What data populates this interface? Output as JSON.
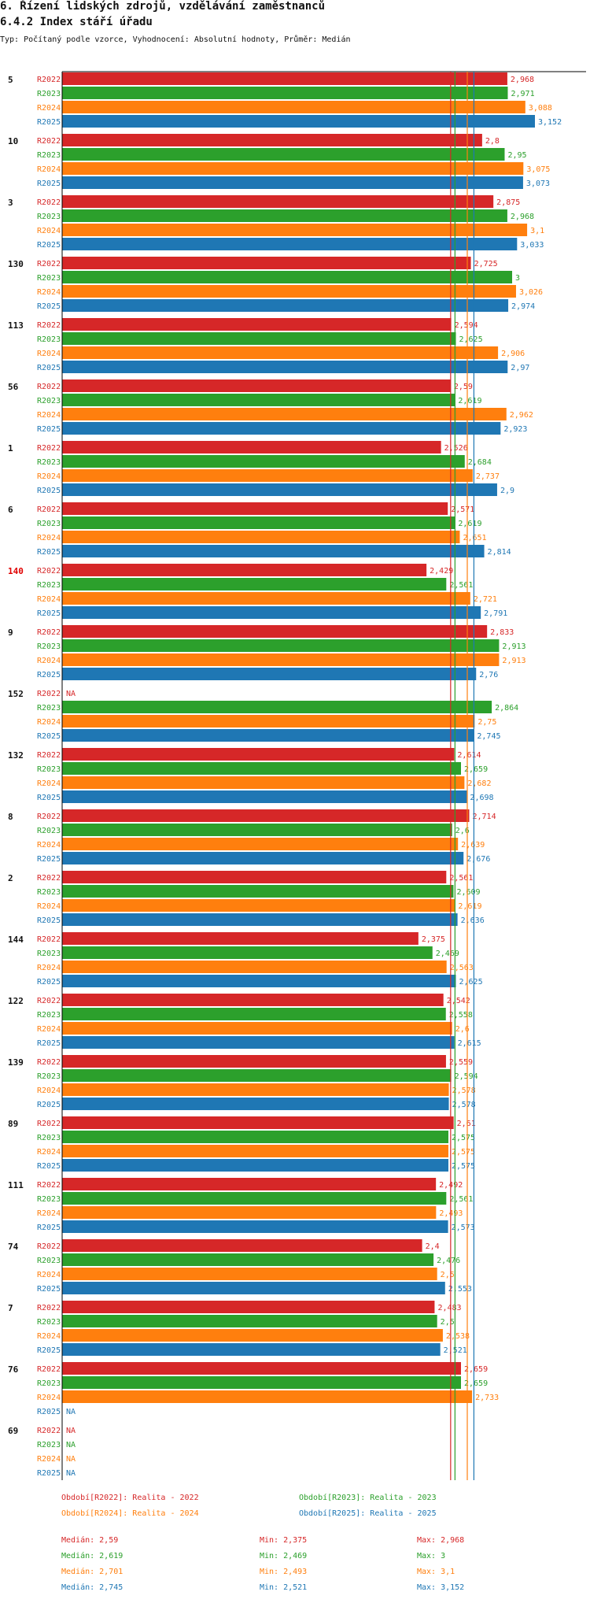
{
  "title": "6. Řízení lidských zdrojů, vzdělávání zaměstnanců",
  "subtitle": "6.4.2 Index stáří úřadu",
  "description": "Typ: Počítaný podle vzorce, Vyhodnocení: Absolutní hodnoty, Průměr: Medián",
  "colors": {
    "R2022": "#d62728",
    "R2023": "#2ca02c",
    "R2024": "#ff7f0e",
    "R2025": "#1f77b4"
  },
  "chart_data": {
    "type": "bar",
    "orientation": "horizontal",
    "series_names": [
      "R2022",
      "R2023",
      "R2024",
      "R2025"
    ],
    "xlim": [
      0,
      3.152
    ],
    "na_label": "NA",
    "highlight_category": "140",
    "groups": [
      {
        "label": "5",
        "values": [
          "2,968",
          "2,971",
          "3,088",
          "3,152"
        ]
      },
      {
        "label": "10",
        "values": [
          "2,8",
          "2,95",
          "3,075",
          "3,073"
        ]
      },
      {
        "label": "3",
        "values": [
          "2,875",
          "2,968",
          "3,1",
          "3,033"
        ]
      },
      {
        "label": "130",
        "values": [
          "2,725",
          "3",
          "3,026",
          "2,974"
        ]
      },
      {
        "label": "113",
        "values": [
          "2,594",
          "2,625",
          "2,906",
          "2,97"
        ]
      },
      {
        "label": "56",
        "values": [
          "2,59",
          "2,619",
          "2,962",
          "2,923"
        ]
      },
      {
        "label": "1",
        "values": [
          "2,526",
          "2,684",
          "2,737",
          "2,9"
        ]
      },
      {
        "label": "6",
        "values": [
          "2,571",
          "2,619",
          "2,651",
          "2,814"
        ]
      },
      {
        "label": "140",
        "values": [
          "2,429",
          "2,561",
          "2,721",
          "2,791"
        ]
      },
      {
        "label": "9",
        "values": [
          "2,833",
          "2,913",
          "2,913",
          "2,76"
        ]
      },
      {
        "label": "152",
        "values": [
          null,
          "2,864",
          "2,75",
          "2,745"
        ]
      },
      {
        "label": "132",
        "values": [
          "2,614",
          "2,659",
          "2,682",
          "2,698"
        ]
      },
      {
        "label": "8",
        "values": [
          "2,714",
          "2,6",
          "2,639",
          "2,676"
        ]
      },
      {
        "label": "2",
        "values": [
          "2,561",
          "2,609",
          "2,619",
          "2,636"
        ]
      },
      {
        "label": "144",
        "values": [
          "2,375",
          "2,469",
          "2,563",
          "2,625"
        ]
      },
      {
        "label": "122",
        "values": [
          "2,542",
          "2,558",
          "2,6",
          "2,615"
        ]
      },
      {
        "label": "139",
        "values": [
          "2,559",
          "2,594",
          "2,578",
          "2,578"
        ]
      },
      {
        "label": "89",
        "values": [
          "2,61",
          "2,575",
          "2,575",
          "2,575"
        ]
      },
      {
        "label": "111",
        "values": [
          "2,492",
          "2,561",
          "2,493",
          "2,573"
        ]
      },
      {
        "label": "74",
        "values": [
          "2,4",
          "2,476",
          "2,5",
          "2,553"
        ]
      },
      {
        "label": "7",
        "values": [
          "2,483",
          "2,5",
          "2,538",
          "2,521"
        ]
      },
      {
        "label": "76",
        "values": [
          "2,659",
          "2,659",
          "2,733",
          null
        ]
      },
      {
        "label": "69",
        "values": [
          null,
          null,
          null,
          null
        ]
      }
    ],
    "medians": [
      {
        "series": "R2022",
        "value": 2.59
      },
      {
        "series": "R2023",
        "value": 2.619
      },
      {
        "series": "R2024",
        "value": 2.701
      },
      {
        "series": "R2025",
        "value": 2.745
      }
    ]
  },
  "legend": {
    "periods": [
      "Období[R2022]: Realita - 2022",
      "Období[R2023]: Realita - 2023",
      "Období[R2024]: Realita - 2024",
      "Období[R2025]: Realita - 2025"
    ],
    "stats": [
      {
        "median": "Medián: 2,59",
        "min": "Min: 2,375",
        "max": "Max: 2,968"
      },
      {
        "median": "Medián: 2,619",
        "min": "Min: 2,469",
        "max": "Max: 3"
      },
      {
        "median": "Medián: 2,701",
        "min": "Min: 2,493",
        "max": "Max: 3,1"
      },
      {
        "median": "Medián: 2,745",
        "min": "Min: 2,521",
        "max": "Max: 3,152"
      }
    ]
  }
}
